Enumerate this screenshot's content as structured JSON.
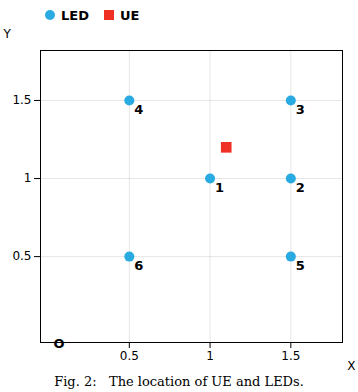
{
  "chart_data": {
    "type": "scatter",
    "caption": "Fig. 2:   The location of UE and LEDs.",
    "xlabel": "X",
    "ylabel": "Y",
    "xlim": [
      -0.05,
      1.82
    ],
    "ylim": [
      -0.05,
      1.82
    ],
    "xticks": [
      0.5,
      1.0,
      1.5
    ],
    "yticks": [
      0.5,
      1.0,
      1.5
    ],
    "grid": true,
    "legend": "upper left",
    "series": [
      {
        "name": "LED",
        "color": "#29ABE2",
        "marker": "circle",
        "x": [
          1.0,
          1.5,
          0.5,
          1.5,
          0.5,
          1.5
        ],
        "values": [
          1.0,
          1.0,
          1.5,
          1.5,
          0.5,
          0.5
        ]
      },
      {
        "name": "UE",
        "color": "#EE3124",
        "marker": "square",
        "x": [
          1.1
        ],
        "values": [
          1.2
        ]
      }
    ],
    "annotations": [
      {
        "text": "1",
        "x": 1.0,
        "y": 1.0
      },
      {
        "text": "2",
        "x": 1.5,
        "y": 1.0
      },
      {
        "text": "3",
        "x": 1.5,
        "y": 1.5
      },
      {
        "text": "4",
        "x": 0.5,
        "y": 1.5
      },
      {
        "text": "5",
        "x": 1.5,
        "y": 0.5
      },
      {
        "text": "6",
        "x": 0.5,
        "y": 0.5
      },
      {
        "text": "O",
        "x": 0,
        "y": 0
      }
    ]
  }
}
